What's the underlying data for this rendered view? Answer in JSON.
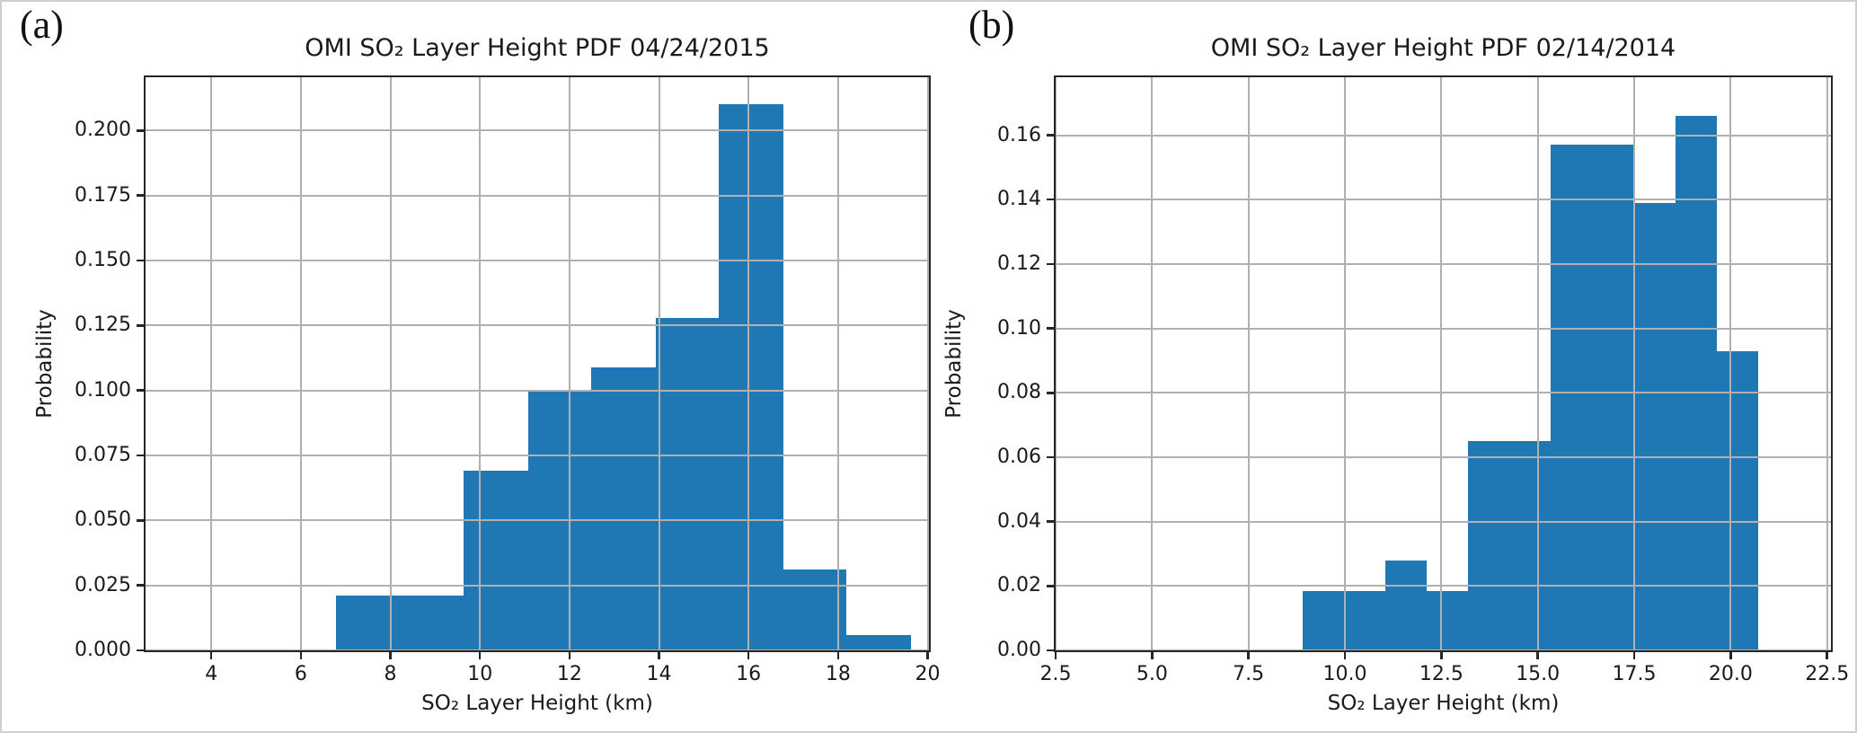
{
  "figure": {
    "panel_labels": [
      "(a)",
      "(b)"
    ],
    "colors": {
      "bar": "#1f77b4",
      "grid": "#b0b0b0",
      "spine": "#262626",
      "text": "#1a1a1a",
      "frame": "#cfcfcf"
    }
  },
  "chart_data": [
    {
      "type": "bar",
      "subtype": "histogram",
      "title": "OMI SO₂ Layer Height PDF 04/24/2015",
      "xlabel": "SO₂ Layer Height (km)",
      "ylabel": "Probability",
      "bin_edges": [
        6.79,
        8.22,
        9.64,
        11.07,
        12.49,
        13.92,
        15.34,
        16.77,
        18.19,
        19.62
      ],
      "values": [
        0.021,
        0.021,
        0.069,
        0.1,
        0.109,
        0.128,
        0.21,
        0.031,
        0.006
      ],
      "xlim": [
        2.53,
        20.03
      ],
      "ylim": [
        0,
        0.2205
      ],
      "xticks": [
        4,
        6,
        8,
        10,
        12,
        14,
        16,
        18,
        20
      ],
      "xtick_labels": [
        "4",
        "6",
        "8",
        "10",
        "12",
        "14",
        "16",
        "18",
        "20"
      ],
      "yticks": [
        0,
        0.025,
        0.05,
        0.075,
        0.1,
        0.125,
        0.15,
        0.175,
        0.2
      ],
      "ytick_labels": [
        "0.000",
        "0.025",
        "0.050",
        "0.075",
        "0.100",
        "0.125",
        "0.150",
        "0.175",
        "0.200"
      ],
      "grid": true,
      "legend": "none"
    },
    {
      "type": "bar",
      "subtype": "histogram",
      "title": "OMI SO₂ Layer Height PDF 02/14/2014",
      "xlabel": "SO₂ Layer Height (km)",
      "ylabel": "Probability",
      "bin_edges": [
        8.9,
        9.97,
        11.05,
        12.12,
        13.2,
        14.27,
        15.34,
        16.42,
        17.49,
        18.57,
        19.64,
        20.72
      ],
      "values": [
        0.0185,
        0.0185,
        0.028,
        0.0185,
        0.065,
        0.065,
        0.157,
        0.157,
        0.139,
        0.166,
        0.093
      ],
      "xlim": [
        2.5,
        22.6
      ],
      "ylim": [
        0,
        0.178
      ],
      "xticks": [
        2.5,
        5.0,
        7.5,
        10.0,
        12.5,
        15.0,
        17.5,
        20.0,
        22.5
      ],
      "xtick_labels": [
        "2.5",
        "5.0",
        "7.5",
        "10.0",
        "12.5",
        "15.0",
        "17.5",
        "20.0",
        "22.5"
      ],
      "yticks": [
        0,
        0.02,
        0.04,
        0.06,
        0.08,
        0.1,
        0.12,
        0.14,
        0.16
      ],
      "ytick_labels": [
        "0.00",
        "0.02",
        "0.04",
        "0.06",
        "0.08",
        "0.10",
        "0.12",
        "0.14",
        "0.16"
      ],
      "grid": true,
      "legend": "none"
    }
  ]
}
